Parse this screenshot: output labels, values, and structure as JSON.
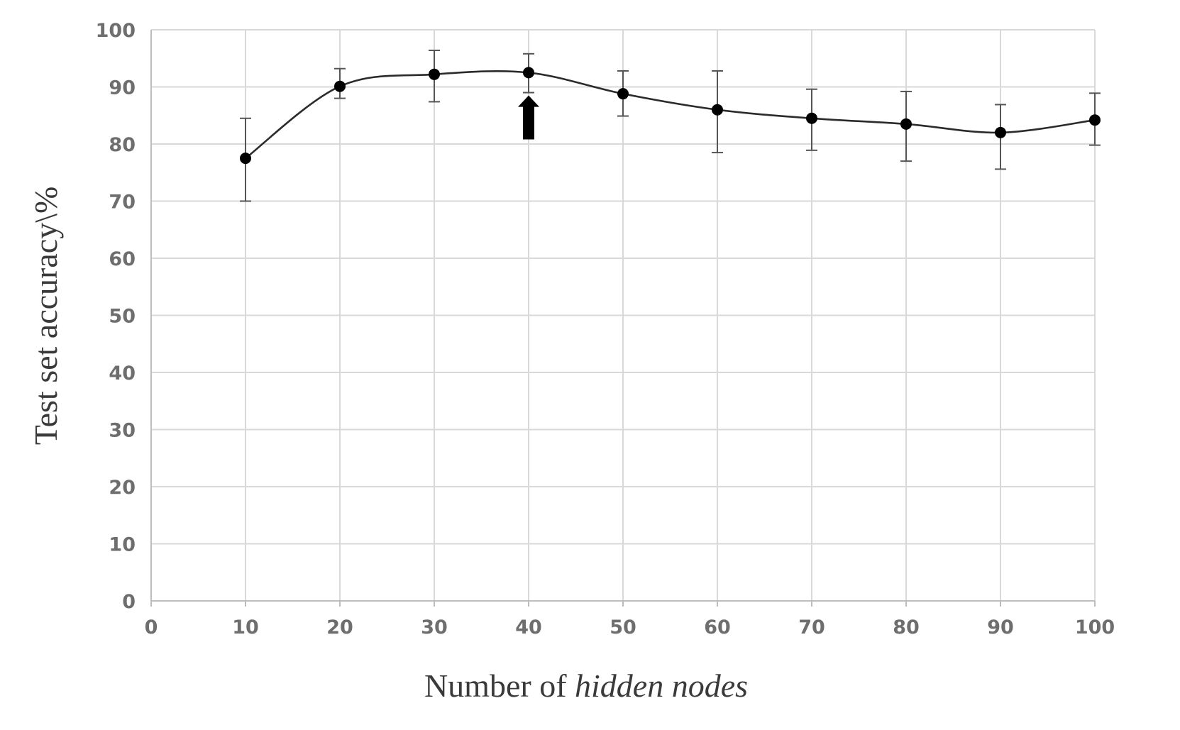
{
  "chart_data": {
    "type": "line",
    "title": "",
    "xlabel": "Number of",
    "xlabel_italic": "hidden nodes",
    "ylabel": "Test set accuracy\\%",
    "xlim": [
      0,
      100
    ],
    "ylim": [
      0,
      100
    ],
    "x_ticks": [
      0,
      10,
      20,
      30,
      40,
      50,
      60,
      70,
      80,
      90,
      100
    ],
    "y_ticks": [
      0,
      10,
      20,
      30,
      40,
      50,
      60,
      70,
      80,
      90,
      100
    ],
    "grid": true,
    "smooth": true,
    "series": [
      {
        "x": [
          10,
          20,
          30,
          40,
          50,
          60,
          70,
          80,
          90,
          100
        ],
        "y": [
          77.5,
          90.1,
          92.2,
          92.5,
          88.8,
          86.0,
          84.5,
          83.5,
          82.0,
          84.2
        ],
        "err_upper": [
          84.5,
          93.2,
          96.4,
          95.8,
          92.8,
          92.8,
          89.6,
          89.2,
          86.9,
          88.9
        ],
        "err_lower": [
          70.0,
          88.0,
          87.4,
          89.0,
          84.9,
          78.5,
          78.9,
          77.0,
          75.6,
          79.8
        ],
        "color": "#000000"
      }
    ],
    "annotations": [
      {
        "type": "arrow",
        "x": 40,
        "y_tip": 88.5,
        "y_tail": 80.8,
        "direction": "up"
      }
    ]
  }
}
